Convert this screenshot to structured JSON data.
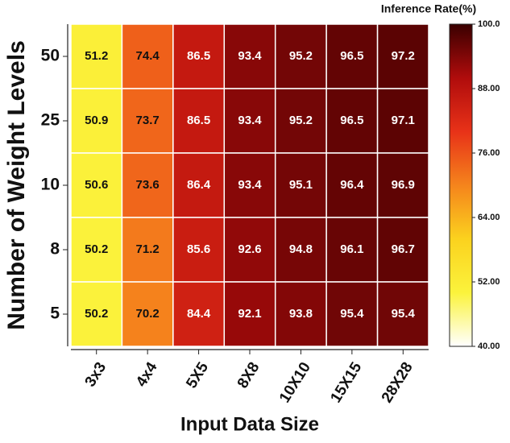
{
  "chart_data": {
    "type": "heatmap",
    "xlabel": "Input Data Size",
    "ylabel": "Number of Weight Levels",
    "x_categories": [
      "3x3",
      "4x4",
      "5X5",
      "8X8",
      "10X10",
      "15X15",
      "28X28"
    ],
    "y_categories": [
      "50",
      "25",
      "10",
      "8",
      "5"
    ],
    "values": [
      [
        51.2,
        74.4,
        86.5,
        93.4,
        95.2,
        96.5,
        97.2
      ],
      [
        50.9,
        73.7,
        86.5,
        93.4,
        95.2,
        96.5,
        97.1
      ],
      [
        50.6,
        73.6,
        86.4,
        93.4,
        95.1,
        96.4,
        96.9
      ],
      [
        50.2,
        71.2,
        85.6,
        92.6,
        94.8,
        96.1,
        96.7
      ],
      [
        50.2,
        70.2,
        84.4,
        92.1,
        93.8,
        95.4,
        95.4
      ]
    ],
    "colormap": [
      "#ffffff",
      "#fbf33c",
      "#fbd21e",
      "#f5841c",
      "#e83218",
      "#b00c0c",
      "#3a0000"
    ],
    "colorbar": {
      "label": "Inference Rate(%)",
      "lim": [
        40,
        100
      ],
      "ticks": [
        {
          "value": 40,
          "label": "40.00"
        },
        {
          "value": 52,
          "label": "52.00"
        },
        {
          "value": 64,
          "label": "64.00"
        },
        {
          "value": 76,
          "label": "76.00"
        },
        {
          "value": 88,
          "label": "88.00"
        },
        {
          "value": 100,
          "label": "100.0"
        }
      ]
    }
  }
}
